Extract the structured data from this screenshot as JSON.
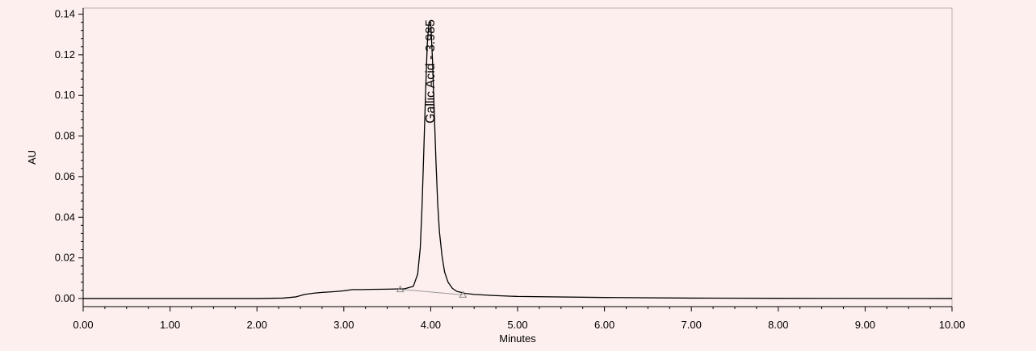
{
  "chart_data": {
    "type": "line",
    "xlabel": "Minutes",
    "ylabel": "AU",
    "xlim": [
      0,
      10
    ],
    "ylim": [
      -0.004,
      0.143
    ],
    "x_ticks": [
      0,
      1,
      2,
      3,
      4,
      5,
      6,
      7,
      8,
      9,
      10
    ],
    "x_tick_labels": [
      "0.00",
      "1.00",
      "2.00",
      "3.00",
      "4.00",
      "5.00",
      "6.00",
      "7.00",
      "8.00",
      "9.00",
      "10.00"
    ],
    "y_ticks": [
      0,
      0.02,
      0.04,
      0.06,
      0.08,
      0.1,
      0.12,
      0.14
    ],
    "y_tick_labels": [
      "0.00",
      "0.02",
      "0.04",
      "0.06",
      "0.08",
      "0.10",
      "0.12",
      "0.14"
    ],
    "grid": false,
    "series": [
      {
        "color": "#000000",
        "x": [
          0,
          1.0,
          2.0,
          2.3,
          2.45,
          2.55,
          2.65,
          2.75,
          2.9,
          3.0,
          3.1,
          3.2,
          3.3,
          3.5,
          3.7,
          3.8,
          3.85,
          3.88,
          3.9,
          3.92,
          3.94,
          3.96,
          3.98,
          4.0,
          4.02,
          4.04,
          4.06,
          4.08,
          4.1,
          4.13,
          4.16,
          4.2,
          4.25,
          4.3,
          4.4,
          4.5,
          4.7,
          5.0,
          6.0,
          7.0,
          8.0,
          10.0
        ],
        "y": [
          0,
          0,
          0,
          0.0002,
          0.0008,
          0.002,
          0.0026,
          0.003,
          0.0034,
          0.0038,
          0.0044,
          0.0044,
          0.0045,
          0.0046,
          0.0048,
          0.006,
          0.012,
          0.025,
          0.045,
          0.072,
          0.1,
          0.125,
          0.136,
          0.136,
          0.118,
          0.093,
          0.068,
          0.047,
          0.033,
          0.021,
          0.013,
          0.008,
          0.005,
          0.0035,
          0.0025,
          0.002,
          0.0015,
          0.001,
          0.0005,
          0.0002,
          0.0001,
          0
        ]
      }
    ],
    "baseline": {
      "color": "#999999",
      "x": [
        3.65,
        4.37
      ],
      "y": [
        0.0045,
        0.0018
      ]
    },
    "markers": [
      {
        "x": 3.65,
        "y": 0.0045
      },
      {
        "x": 4.37,
        "y": 0.0018
      }
    ],
    "annotations": [
      {
        "text": "Gallic Acid - 3.985",
        "x": 3.985
      }
    ]
  }
}
